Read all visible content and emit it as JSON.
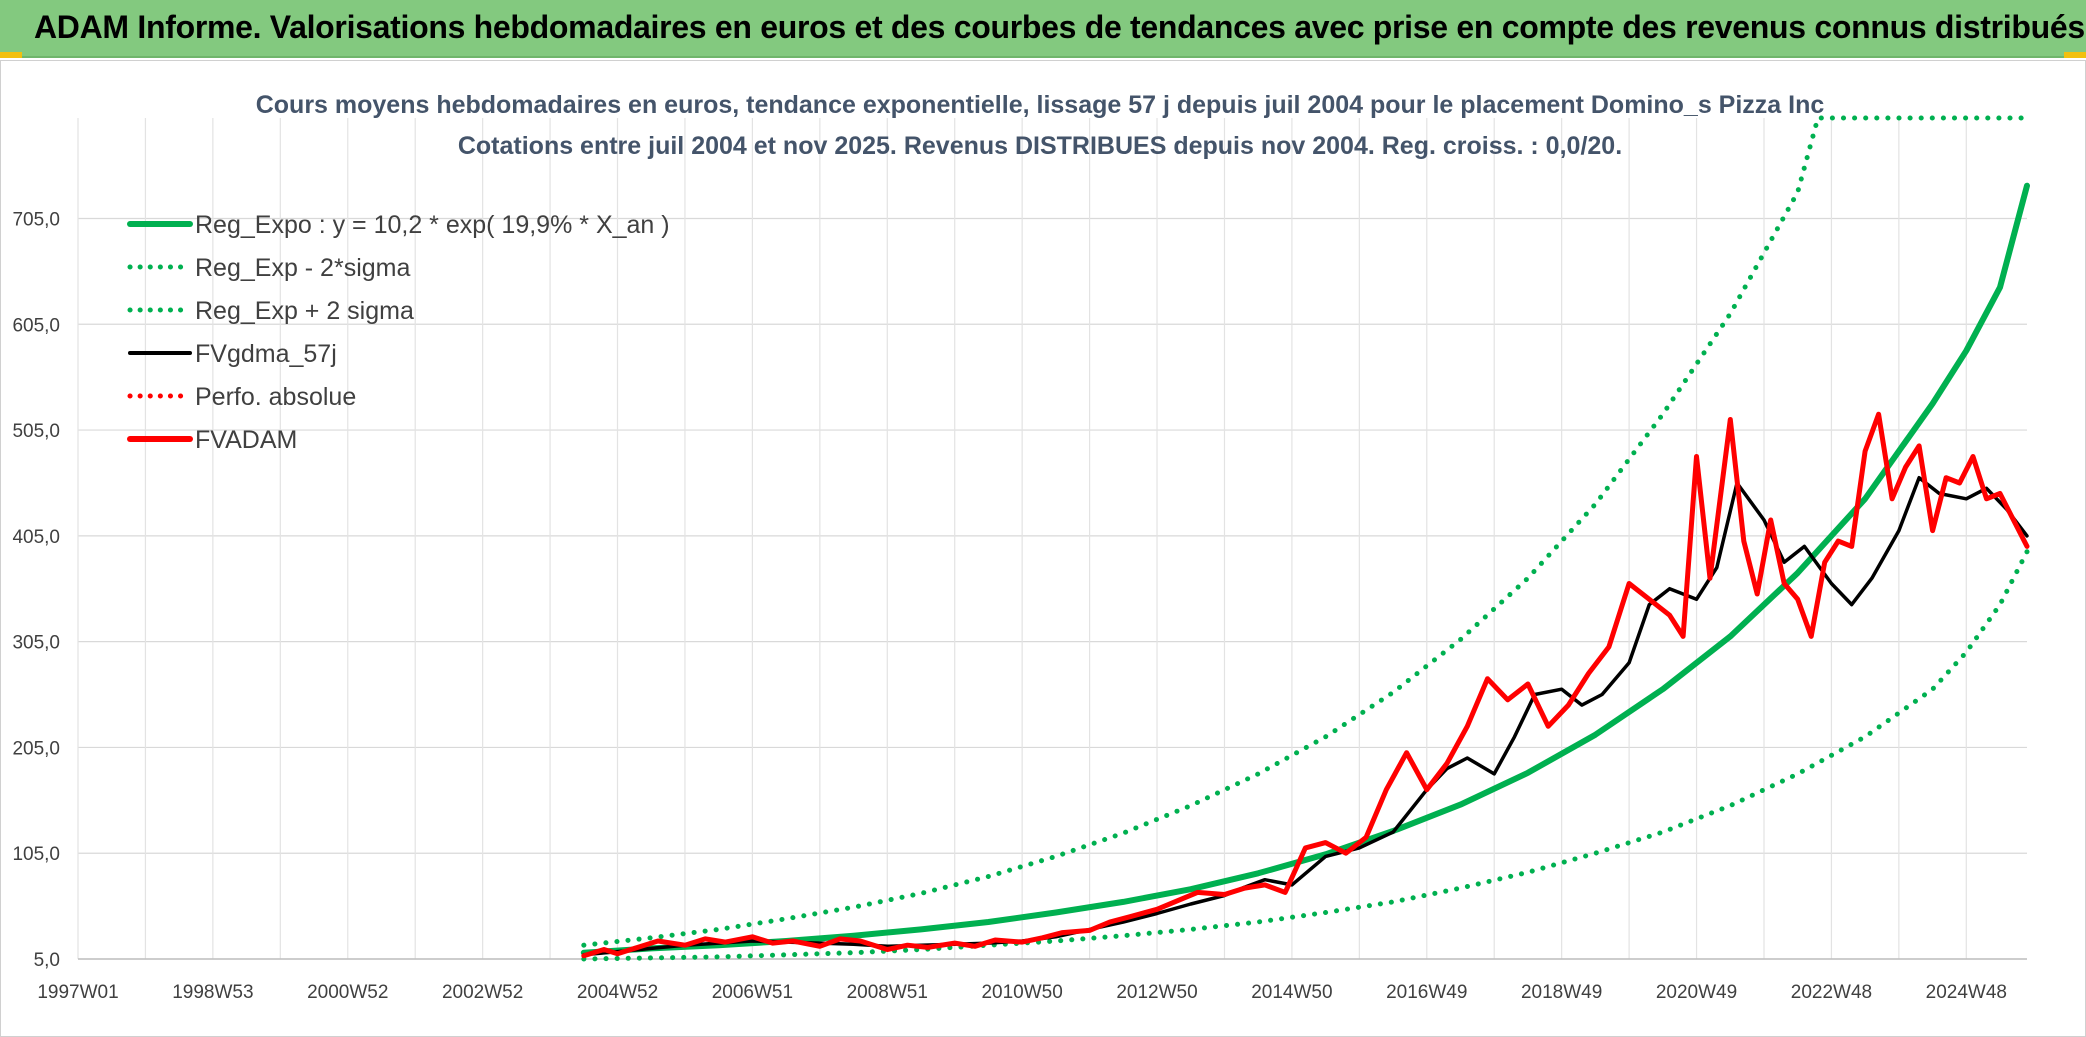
{
  "header": {
    "title": "ADAM Informe. Valorisations hebdomadaires en euros et des courbes de tendances avec prise en compte des revenus connus distribués"
  },
  "colors": {
    "header_bg": "#83c97f",
    "green": "#00b050",
    "red": "#ff0000",
    "black": "#000000",
    "title": "#44546a"
  },
  "chart_data": {
    "type": "line",
    "title_line1": "Cours moyens hebdomadaires en euros, tendance exponentielle, lissage 57 j depuis juil 2004 pour le placement Domino_s Pizza Inc",
    "title_line2": "Cotations entre juil 2004 et nov 2025. Revenus DISTRIBUES depuis nov 2004. Reg. croiss. : 0,0/20.",
    "xlabel": "",
    "ylabel": "",
    "x_range": [
      1997.0,
      2025.9
    ],
    "ylim": [
      5,
      800
    ],
    "grid": true,
    "legend_position": "top-left",
    "x_ticks": [
      {
        "label": "1997W01",
        "x": 1997.0
      },
      {
        "label": "1998W53",
        "x": 1999.0
      },
      {
        "label": "2000W52",
        "x": 2001.0
      },
      {
        "label": "2002W52",
        "x": 2003.0
      },
      {
        "label": "2004W52",
        "x": 2005.0
      },
      {
        "label": "2006W51",
        "x": 2007.0
      },
      {
        "label": "2008W51",
        "x": 2009.0
      },
      {
        "label": "2010W50",
        "x": 2011.0
      },
      {
        "label": "2012W50",
        "x": 2013.0
      },
      {
        "label": "2014W50",
        "x": 2015.0
      },
      {
        "label": "2016W49",
        "x": 2017.0
      },
      {
        "label": "2018W49",
        "x": 2019.0
      },
      {
        "label": "2020W49",
        "x": 2021.0
      },
      {
        "label": "2022W48",
        "x": 2023.0
      },
      {
        "label": "2024W48",
        "x": 2025.0
      }
    ],
    "y_ticks": [
      {
        "label": "5,0",
        "y": 5
      },
      {
        "label": "105,0",
        "y": 105
      },
      {
        "label": "205,0",
        "y": 205
      },
      {
        "label": "305,0",
        "y": 305
      },
      {
        "label": "405,0",
        "y": 405
      },
      {
        "label": "505,0",
        "y": 505
      },
      {
        "label": "605,0",
        "y": 605
      },
      {
        "label": "705,0",
        "y": 705
      }
    ],
    "legend": [
      {
        "label": "Reg_Expo : y = 10,2 * exp( 19,9% *  X_an )",
        "color": "#00b050",
        "style": "solid-thick"
      },
      {
        "label": "Reg_Exp - 2*sigma",
        "color": "#00b050",
        "style": "dotted"
      },
      {
        "label": "Reg_Exp + 2 sigma",
        "color": "#00b050",
        "style": "dotted"
      },
      {
        "label": "FVgdma_57j",
        "color": "#000000",
        "style": "solid"
      },
      {
        "label": "Perfo. absolue",
        "color": "#ff0000",
        "style": "dotted"
      },
      {
        "label": "FVADAM",
        "color": "#ff0000",
        "style": "solid-thick"
      }
    ],
    "series": [
      {
        "name": "Reg_Expo",
        "color": "#00b050",
        "x": [
          2004.5,
          2005.5,
          2006.5,
          2007.5,
          2008.5,
          2009.5,
          2010.5,
          2011.5,
          2012.5,
          2013.5,
          2014.5,
          2015.5,
          2016.5,
          2017.5,
          2018.5,
          2019.5,
          2020.5,
          2021.5,
          2022.5,
          2023.5,
          2024.5,
          2025.0,
          2025.5,
          2025.9
        ],
        "values": [
          11,
          15,
          18,
          22,
          27,
          33,
          40,
          49,
          59,
          71,
          86,
          104,
          126,
          151,
          181,
          217,
          260,
          310,
          370,
          440,
          530,
          580,
          640,
          736
        ]
      },
      {
        "name": "Reg_Exp - 2*sigma",
        "color": "#00b050",
        "x": [
          2004.5,
          2005.5,
          2006.5,
          2007.5,
          2008.5,
          2009.5,
          2010.5,
          2011.5,
          2012.5,
          2013.5,
          2014.5,
          2015.5,
          2016.5,
          2017.5,
          2018.5,
          2019.5,
          2020.5,
          2021.5,
          2022.5,
          2023.5,
          2024.5,
          2025.0,
          2025.5,
          2025.9
        ],
        "values": [
          5,
          6,
          7,
          9,
          11,
          14,
          18,
          22,
          27,
          33,
          40,
          49,
          59,
          72,
          87,
          105,
          125,
          150,
          180,
          215,
          260,
          295,
          340,
          390
        ]
      },
      {
        "name": "Reg_Exp + 2 sigma",
        "color": "#00b050",
        "x": [
          2004.5,
          2005.5,
          2006.5,
          2007.5,
          2008.5,
          2009.5,
          2010.5,
          2011.5,
          2012.5,
          2013.5,
          2014.5,
          2015.5,
          2016.5,
          2017.5,
          2018.5,
          2019.5,
          2020.5,
          2021.5,
          2022.5,
          2022.8,
          2023.5,
          2024.5,
          2025.9
        ],
        "values": [
          18,
          25,
          33,
          43,
          54,
          67,
          83,
          102,
          124,
          150,
          180,
          215,
          257,
          307,
          365,
          435,
          520,
          615,
          730,
          800,
          800,
          800,
          800
        ]
      },
      {
        "name": "FVgdma_57j",
        "color": "#000000",
        "x": [
          2004.5,
          2005.0,
          2005.5,
          2006.0,
          2006.5,
          2007.0,
          2007.5,
          2008.0,
          2008.5,
          2009.0,
          2009.5,
          2010.0,
          2010.5,
          2011.0,
          2011.5,
          2012.0,
          2012.5,
          2013.0,
          2013.5,
          2014.0,
          2014.3,
          2014.6,
          2015.0,
          2015.5,
          2016.0,
          2016.5,
          2017.0,
          2017.3,
          2017.6,
          2018.0,
          2018.3,
          2018.6,
          2019.0,
          2019.3,
          2019.6,
          2020.0,
          2020.3,
          2020.6,
          2021.0,
          2021.3,
          2021.6,
          2022.0,
          2022.3,
          2022.6,
          2023.0,
          2023.3,
          2023.6,
          2024.0,
          2024.3,
          2024.6,
          2025.0,
          2025.3,
          2025.6,
          2025.9
        ],
        "values": [
          9,
          12,
          15,
          18,
          20,
          22,
          21,
          20,
          19,
          17,
          18,
          19,
          20,
          22,
          26,
          33,
          40,
          48,
          57,
          65,
          73,
          80,
          75,
          102,
          110,
          125,
          165,
          185,
          195,
          180,
          215,
          255,
          260,
          245,
          255,
          285,
          340,
          355,
          345,
          375,
          455,
          420,
          380,
          395,
          360,
          340,
          365,
          410,
          460,
          445,
          440,
          450,
          430,
          405
        ]
      },
      {
        "name": "FVADAM",
        "color": "#ff0000",
        "x": [
          2004.5,
          2004.8,
          2005.0,
          2005.3,
          2005.6,
          2006.0,
          2006.3,
          2006.6,
          2007.0,
          2007.3,
          2007.6,
          2008.0,
          2008.3,
          2008.6,
          2009.0,
          2009.3,
          2009.6,
          2010.0,
          2010.3,
          2010.6,
          2011.0,
          2011.3,
          2011.6,
          2012.0,
          2012.3,
          2012.6,
          2013.0,
          2013.3,
          2013.6,
          2014.0,
          2014.3,
          2014.6,
          2014.9,
          2015.2,
          2015.5,
          2015.8,
          2016.1,
          2016.4,
          2016.7,
          2017.0,
          2017.3,
          2017.6,
          2017.9,
          2018.2,
          2018.5,
          2018.8,
          2019.1,
          2019.4,
          2019.7,
          2020.0,
          2020.3,
          2020.6,
          2020.8,
          2021.0,
          2021.2,
          2021.5,
          2021.7,
          2021.9,
          2022.1,
          2022.3,
          2022.5,
          2022.7,
          2022.9,
          2023.1,
          2023.3,
          2023.5,
          2023.7,
          2023.9,
          2024.1,
          2024.3,
          2024.5,
          2024.7,
          2024.9,
          2025.1,
          2025.3,
          2025.5,
          2025.7,
          2025.9
        ],
        "values": [
          8,
          14,
          10,
          16,
          22,
          18,
          24,
          21,
          26,
          20,
          22,
          17,
          24,
          22,
          14,
          18,
          16,
          20,
          17,
          23,
          21,
          25,
          30,
          32,
          40,
          45,
          52,
          60,
          68,
          66,
          72,
          75,
          68,
          110,
          115,
          105,
          120,
          165,
          200,
          165,
          190,
          225,
          270,
          250,
          265,
          225,
          245,
          275,
          300,
          360,
          345,
          330,
          310,
          480,
          365,
          515,
          400,
          350,
          420,
          360,
          345,
          310,
          380,
          400,
          395,
          485,
          520,
          440,
          470,
          490,
          410,
          460,
          455,
          480,
          440,
          445,
          420,
          395
        ]
      }
    ]
  }
}
